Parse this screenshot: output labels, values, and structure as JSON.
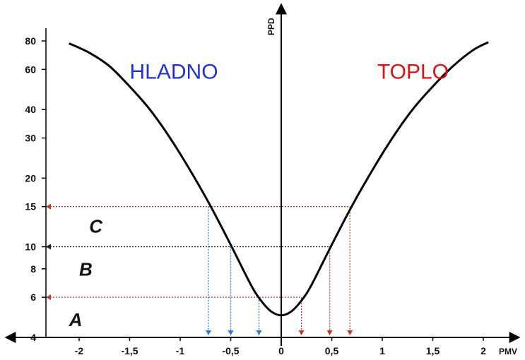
{
  "chart_data": {
    "type": "line",
    "xlabel": "PMV",
    "ylabel": "PPD",
    "x_ticks": [
      "-2",
      "-1,5",
      "-1",
      "-0,5",
      "0",
      "0,5",
      "1",
      "1,5",
      "2"
    ],
    "x_tick_values": [
      -2,
      -1.5,
      -1,
      -0.5,
      0,
      0.5,
      1,
      1.5,
      2
    ],
    "y_ticks": [
      "80",
      "60",
      "40",
      "30",
      "20",
      "15",
      "10",
      "8",
      "6",
      "4"
    ],
    "y_tick_values": [
      80,
      60,
      40,
      30,
      20,
      15,
      10,
      8,
      6,
      4
    ],
    "xlim": [
      -2.3,
      2.3
    ],
    "ylim": [
      4,
      95
    ],
    "y_scale": "log",
    "grid": false,
    "series": [
      {
        "x": [
          -2.1,
          -1.9,
          -1.7,
          -1.5,
          -1.3,
          -1.1,
          -0.9,
          -0.7,
          -0.5,
          -0.3,
          -0.2,
          -0.1,
          0,
          0.1,
          0.2,
          0.3,
          0.5,
          0.7,
          0.9,
          1.1,
          1.3,
          1.5,
          1.7,
          1.9,
          2.05
        ],
        "y": [
          78,
          71,
          62,
          50.5,
          40,
          30,
          21.6,
          15.1,
          10.2,
          6.8,
          5.8,
          5.2,
          5.0,
          5.2,
          5.8,
          6.8,
          10.2,
          15.1,
          21.6,
          30,
          40,
          50.5,
          62,
          73,
          79
        ]
      }
    ],
    "zone_labels": [
      {
        "text": "HLADNO",
        "color": "#2233cc",
        "x": -1.5,
        "y": 62
      },
      {
        "text": "TOPLO",
        "color": "#dd1111",
        "x": 0.95,
        "y": 62
      }
    ],
    "region_labels": [
      {
        "text": "C",
        "x": -1.9,
        "y": 12.2
      },
      {
        "text": "B",
        "x": -2.0,
        "y": 7.9
      },
      {
        "text": "A",
        "x": -2.1,
        "y": 4.75
      }
    ],
    "guides": [
      {
        "y": 15,
        "x_left": -0.72,
        "x_right": 0.68,
        "color_h": "#c0392b",
        "color_left": "#2a7fd4",
        "color_right": "#c0392b"
      },
      {
        "y": 10,
        "x_left": -0.5,
        "x_right": 0.48,
        "color_h": "#222222",
        "color_left": "#2a7fd4",
        "color_right": "#c0392b"
      },
      {
        "y": 6,
        "x_left": -0.22,
        "x_right": 0.2,
        "color_h": "#c0392b",
        "color_left": "#2a7fd4",
        "color_right": "#c0392b"
      }
    ],
    "colors": {
      "curve": "#000000",
      "cold": "#2233cc",
      "warm": "#dd1111",
      "axis": "#000000"
    }
  }
}
